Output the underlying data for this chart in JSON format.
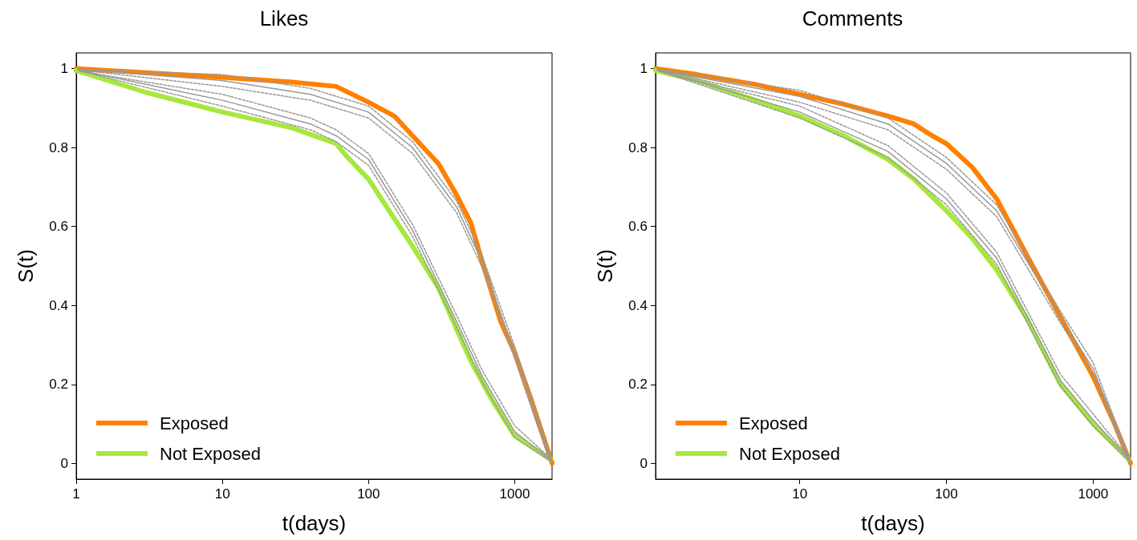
{
  "chart_data": [
    {
      "type": "line",
      "title": "Likes",
      "xlabel": "t(days)",
      "ylabel": "S(t)",
      "log": "x",
      "xlim": [
        1,
        1800
      ],
      "xticks": [
        1,
        10,
        100,
        1000
      ],
      "ylim": [
        -0.04,
        1.04
      ],
      "yticks": [
        0,
        0.2,
        0.4,
        0.6,
        0.8,
        1
      ],
      "grid": false,
      "legend": "bottom left",
      "marker": "none",
      "series": [
        {
          "name": "Exposed",
          "color": "#ff8000",
          "x": [
            1,
            3,
            10,
            30,
            60,
            100,
            150,
            200,
            300,
            400,
            500,
            600,
            800,
            1000,
            1300,
            1800
          ],
          "values": [
            1,
            0.99,
            0.978,
            0.966,
            0.955,
            0.915,
            0.88,
            0.83,
            0.76,
            0.68,
            0.61,
            0.51,
            0.36,
            0.28,
            0.16,
            0
          ]
        },
        {
          "name": "Not Exposed",
          "color": "#a6e83c",
          "x": [
            1,
            3,
            10,
            30,
            60,
            70,
            100,
            150,
            200,
            300,
            400,
            500,
            700,
            1000,
            1750
          ],
          "values": [
            0.995,
            0.94,
            0.89,
            0.85,
            0.81,
            0.78,
            0.72,
            0.62,
            0.55,
            0.445,
            0.34,
            0.26,
            0.16,
            0.07,
            0.01
          ]
        },
        {
          "color": "#999999",
          "line_style": "solid",
          "x": [
            1.02,
            10,
            40,
            100,
            200,
            400,
            600,
            1000,
            1400,
            1780
          ],
          "values": [
            0.998,
            0.97,
            0.935,
            0.89,
            0.8,
            0.65,
            0.51,
            0.28,
            0.12,
            0.004
          ]
        },
        {
          "color": "#999999",
          "line_style": "dashed",
          "x": [
            1.03,
            10,
            40,
            100,
            200,
            400,
            600,
            1000,
            1400,
            1760
          ],
          "values": [
            0.997,
            0.955,
            0.92,
            0.875,
            0.785,
            0.635,
            0.495,
            0.265,
            0.105,
            0.002
          ]
        },
        {
          "color": "#999999",
          "line_style": "dashed",
          "x": [
            1.04,
            10,
            40,
            100,
            200,
            400,
            600,
            1000,
            1400,
            1790
          ],
          "values": [
            0.999,
            0.985,
            0.95,
            0.905,
            0.815,
            0.665,
            0.525,
            0.295,
            0.135,
            0.006
          ]
        },
        {
          "color": "#999999",
          "line_style": "solid",
          "x": [
            1.05,
            10,
            40,
            60,
            100,
            200,
            400,
            600,
            1000,
            1770
          ],
          "values": [
            0.996,
            0.92,
            0.86,
            0.83,
            0.77,
            0.59,
            0.36,
            0.22,
            0.08,
            0.008
          ]
        },
        {
          "color": "#999999",
          "line_style": "dashed",
          "x": [
            1.06,
            10,
            40,
            60,
            100,
            200,
            400,
            600,
            1000,
            1740
          ],
          "values": [
            0.994,
            0.905,
            0.845,
            0.815,
            0.755,
            0.575,
            0.345,
            0.205,
            0.065,
            0.007
          ]
        },
        {
          "color": "#999999",
          "line_style": "dashed",
          "x": [
            1.07,
            10,
            40,
            60,
            100,
            200,
            400,
            600,
            1000,
            1795
          ],
          "values": [
            0.993,
            0.935,
            0.875,
            0.845,
            0.785,
            0.605,
            0.375,
            0.235,
            0.095,
            0.009
          ]
        }
      ]
    },
    {
      "type": "line",
      "title": "Comments",
      "xlabel": "t(days)",
      "ylabel": "S(t)",
      "log": "x",
      "xlim": [
        1.04,
        1800
      ],
      "xticks": [
        10,
        100,
        1000
      ],
      "ylim": [
        -0.04,
        1.04
      ],
      "yticks": [
        0,
        0.2,
        0.4,
        0.6,
        0.8,
        1
      ],
      "grid": false,
      "legend": "bottom left",
      "marker": "none",
      "series": [
        {
          "name": "Exposed",
          "color": "#ff8000",
          "x": [
            1.04,
            2,
            5,
            10,
            20,
            40,
            60,
            80,
            100,
            150,
            220,
            350,
            600,
            1000,
            1400,
            1800
          ],
          "values": [
            1,
            0.985,
            0.96,
            0.935,
            0.91,
            0.88,
            0.86,
            0.83,
            0.81,
            0.75,
            0.67,
            0.53,
            0.37,
            0.22,
            0.1,
            0
          ]
        },
        {
          "name": "Not Exposed",
          "color": "#a6e83c",
          "x": [
            1.04,
            2,
            5,
            10,
            20,
            40,
            60,
            100,
            150,
            220,
            350,
            600,
            1000,
            1750
          ],
          "values": [
            0.995,
            0.97,
            0.92,
            0.88,
            0.83,
            0.77,
            0.72,
            0.64,
            0.57,
            0.49,
            0.37,
            0.2,
            0.1,
            0.01
          ]
        },
        {
          "color": "#999999",
          "line_style": "solid",
          "x": [
            1.06,
            10,
            40,
            100,
            220,
            600,
            1000,
            1780
          ],
          "values": [
            0.998,
            0.93,
            0.86,
            0.76,
            0.64,
            0.37,
            0.24,
            0.004
          ]
        },
        {
          "color": "#999999",
          "line_style": "dashed",
          "x": [
            1.07,
            10,
            40,
            100,
            220,
            600,
            1000,
            1760
          ],
          "values": [
            0.997,
            0.915,
            0.845,
            0.745,
            0.625,
            0.355,
            0.225,
            0.002
          ]
        },
        {
          "color": "#999999",
          "line_style": "dashed",
          "x": [
            1.08,
            10,
            40,
            100,
            220,
            600,
            1000,
            1790
          ],
          "values": [
            0.999,
            0.945,
            0.875,
            0.775,
            0.655,
            0.385,
            0.255,
            0.006
          ]
        },
        {
          "color": "#999999",
          "line_style": "solid",
          "x": [
            1.09,
            10,
            40,
            100,
            220,
            600,
            1000,
            1770
          ],
          "values": [
            0.996,
            0.89,
            0.79,
            0.67,
            0.52,
            0.21,
            0.11,
            0.008
          ]
        },
        {
          "color": "#999999",
          "line_style": "dashed",
          "x": [
            1.1,
            10,
            40,
            100,
            220,
            600,
            1000,
            1740
          ],
          "values": [
            0.994,
            0.875,
            0.775,
            0.655,
            0.505,
            0.195,
            0.095,
            0.007
          ]
        },
        {
          "color": "#999999",
          "line_style": "dashed",
          "x": [
            1.11,
            10,
            40,
            100,
            220,
            600,
            1000,
            1795
          ],
          "values": [
            0.993,
            0.905,
            0.805,
            0.685,
            0.535,
            0.225,
            0.125,
            0.009
          ]
        }
      ]
    }
  ]
}
